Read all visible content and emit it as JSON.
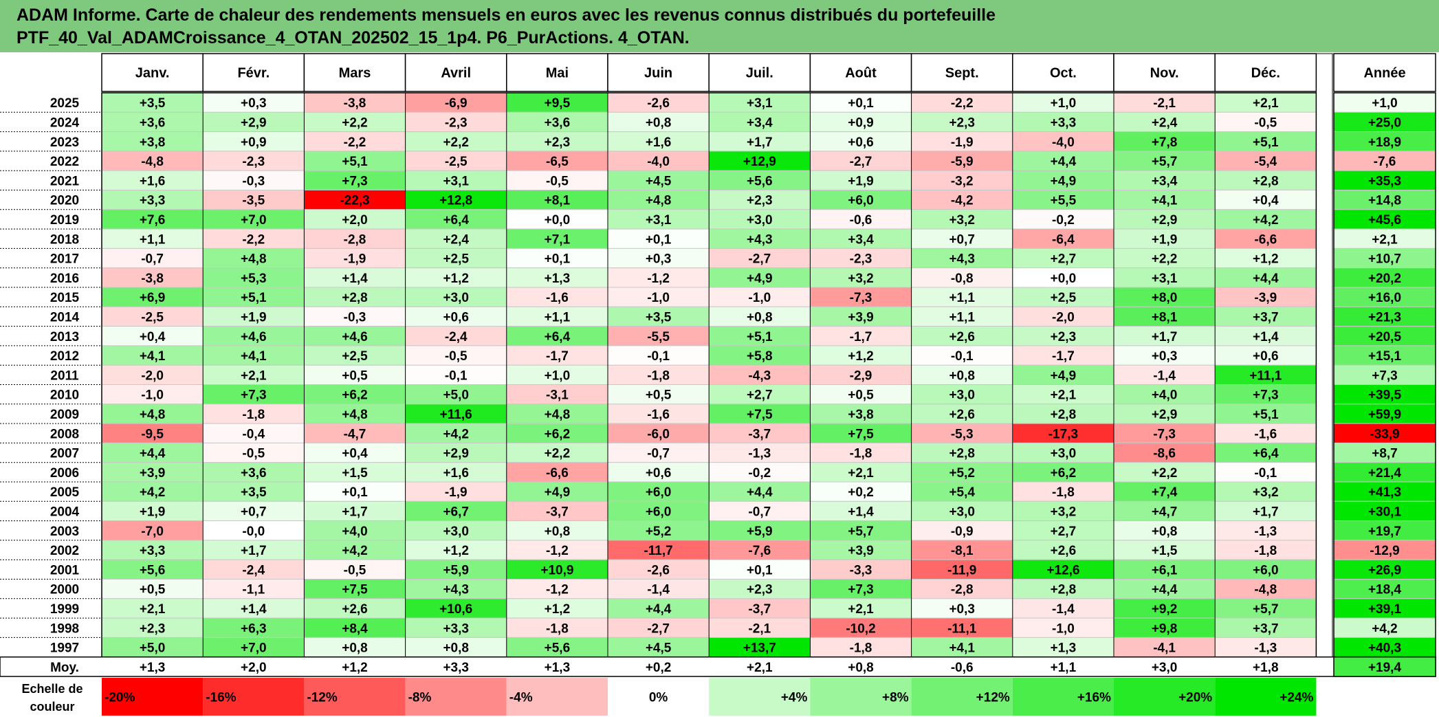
{
  "title": {
    "line1": "ADAM Informe. Carte de chaleur des rendements mensuels en euros avec les revenus connus distribués du portefeuille",
    "line2": "PTF_40_Val_ADAMCroissance_4_OTAN_202502_15_1p4. P6_PurActions. 4_OTAN."
  },
  "chart_data": {
    "type": "heatmap",
    "columns": [
      "Janv.",
      "Févr.",
      "Mars",
      "Avril",
      "Mai",
      "Juin",
      "Juil.",
      "Août",
      "Sept.",
      "Oct.",
      "Nov.",
      "Déc."
    ],
    "year_column": "Année",
    "rows": [
      {
        "year": "2025",
        "values": [
          "+3,5",
          "+0,3",
          "-3,8",
          "-6,9",
          "+9,5",
          "-2,6",
          "+3,1",
          "+0,1",
          "-2,2",
          "+1,0",
          "-2,1",
          "+2,1"
        ],
        "annual": "+1,0"
      },
      {
        "year": "2024",
        "values": [
          "+3,6",
          "+2,9",
          "+2,2",
          "-2,3",
          "+3,6",
          "+0,8",
          "+3,4",
          "+0,9",
          "+2,3",
          "+3,3",
          "+2,4",
          "-0,5"
        ],
        "annual": "+25,0"
      },
      {
        "year": "2023",
        "values": [
          "+3,8",
          "+0,9",
          "-2,2",
          "+2,2",
          "+2,3",
          "+1,6",
          "+1,7",
          "+0,6",
          "-1,9",
          "-4,0",
          "+7,8",
          "+5,1"
        ],
        "annual": "+18,9"
      },
      {
        "year": "2022",
        "values": [
          "-4,8",
          "-2,3",
          "+5,1",
          "-2,5",
          "-6,5",
          "-4,0",
          "+12,9",
          "-2,7",
          "-5,9",
          "+4,4",
          "+5,7",
          "-5,4"
        ],
        "annual": "-7,6"
      },
      {
        "year": "2021",
        "values": [
          "+1,6",
          "-0,3",
          "+7,3",
          "+3,1",
          "-0,5",
          "+4,5",
          "+5,6",
          "+1,9",
          "-3,2",
          "+4,9",
          "+3,4",
          "+2,8"
        ],
        "annual": "+35,3"
      },
      {
        "year": "2020",
        "values": [
          "+3,3",
          "-3,5",
          "-22,3",
          "+12,8",
          "+8,1",
          "+4,8",
          "+2,3",
          "+6,0",
          "-4,2",
          "+5,5",
          "+4,1",
          "+0,4"
        ],
        "annual": "+14,8"
      },
      {
        "year": "2019",
        "values": [
          "+7,6",
          "+7,0",
          "+2,0",
          "+6,4",
          "+0,0",
          "+3,1",
          "+3,0",
          "-0,6",
          "+3,2",
          "-0,2",
          "+2,9",
          "+4,2"
        ],
        "annual": "+45,6"
      },
      {
        "year": "2018",
        "values": [
          "+1,1",
          "-2,2",
          "-2,8",
          "+2,4",
          "+7,1",
          "+0,1",
          "+4,3",
          "+3,4",
          "+0,7",
          "-6,4",
          "+1,9",
          "-6,6"
        ],
        "annual": "+2,1"
      },
      {
        "year": "2017",
        "values": [
          "-0,7",
          "+4,8",
          "-1,9",
          "+2,5",
          "+0,1",
          "+0,3",
          "-2,7",
          "-2,3",
          "+4,3",
          "+2,7",
          "+2,2",
          "+1,2"
        ],
        "annual": "+10,7"
      },
      {
        "year": "2016",
        "values": [
          "-3,8",
          "+5,3",
          "+1,4",
          "+1,2",
          "+1,3",
          "-1,2",
          "+4,9",
          "+3,2",
          "-0,8",
          "+0,0",
          "+3,1",
          "+4,4"
        ],
        "annual": "+20,2"
      },
      {
        "year": "2015",
        "values": [
          "+6,9",
          "+5,1",
          "+2,8",
          "+3,0",
          "-1,6",
          "-1,0",
          "-1,0",
          "-7,3",
          "+1,1",
          "+2,5",
          "+8,0",
          "-3,9"
        ],
        "annual": "+16,0"
      },
      {
        "year": "2014",
        "values": [
          "-2,5",
          "+1,9",
          "-0,3",
          "+0,6",
          "+1,1",
          "+3,5",
          "+0,8",
          "+3,9",
          "+1,1",
          "-2,0",
          "+8,1",
          "+3,7"
        ],
        "annual": "+21,3"
      },
      {
        "year": "2013",
        "values": [
          "+0,4",
          "+4,6",
          "+4,6",
          "-2,4",
          "+6,4",
          "-5,5",
          "+5,1",
          "-1,7",
          "+2,6",
          "+2,3",
          "+1,7",
          "+1,4"
        ],
        "annual": "+20,5"
      },
      {
        "year": "2012",
        "values": [
          "+4,1",
          "+4,1",
          "+2,5",
          "-0,5",
          "-1,7",
          "-0,1",
          "+5,8",
          "+1,2",
          "-0,1",
          "-1,7",
          "+0,3",
          "+0,6"
        ],
        "annual": "+15,1"
      },
      {
        "year": "2011",
        "values": [
          "-2,0",
          "+2,1",
          "+0,5",
          "-0,1",
          "+1,0",
          "-1,8",
          "-4,3",
          "-2,9",
          "+0,8",
          "+4,9",
          "-1,4",
          "+11,1"
        ],
        "annual": "+7,3"
      },
      {
        "year": "2010",
        "values": [
          "-1,0",
          "+7,3",
          "+6,2",
          "+5,0",
          "-3,1",
          "+0,5",
          "+2,7",
          "+0,5",
          "+3,0",
          "+2,1",
          "+4,0",
          "+7,3"
        ],
        "annual": "+39,5"
      },
      {
        "year": "2009",
        "values": [
          "+4,8",
          "-1,8",
          "+4,8",
          "+11,6",
          "+4,8",
          "-1,6",
          "+7,5",
          "+3,8",
          "+2,6",
          "+2,8",
          "+2,9",
          "+5,1"
        ],
        "annual": "+59,9"
      },
      {
        "year": "2008",
        "values": [
          "-9,5",
          "-0,4",
          "-4,7",
          "+4,2",
          "+6,2",
          "-6,0",
          "-3,7",
          "+7,5",
          "-5,3",
          "-17,3",
          "-7,3",
          "-1,6"
        ],
        "annual": "-33,9"
      },
      {
        "year": "2007",
        "values": [
          "+4,4",
          "-0,5",
          "+0,4",
          "+2,9",
          "+2,2",
          "-0,7",
          "-1,3",
          "-1,8",
          "+2,8",
          "+3,0",
          "-8,6",
          "+6,4"
        ],
        "annual": "+8,7"
      },
      {
        "year": "2006",
        "values": [
          "+3,9",
          "+3,6",
          "+1,5",
          "+1,6",
          "-6,6",
          "+0,6",
          "-0,2",
          "+2,1",
          "+5,2",
          "+6,2",
          "+2,2",
          "-0,1"
        ],
        "annual": "+21,4"
      },
      {
        "year": "2005",
        "values": [
          "+4,2",
          "+3,5",
          "+0,1",
          "-1,9",
          "+4,9",
          "+6,0",
          "+4,4",
          "+0,2",
          "+5,4",
          "-1,8",
          "+7,4",
          "+3,2"
        ],
        "annual": "+41,3"
      },
      {
        "year": "2004",
        "values": [
          "+1,9",
          "+0,7",
          "+1,7",
          "+6,7",
          "-3,7",
          "+6,0",
          "-0,7",
          "+1,4",
          "+3,0",
          "+3,2",
          "+4,7",
          "+1,7"
        ],
        "annual": "+30,1"
      },
      {
        "year": "2003",
        "values": [
          "-7,0",
          "-0,0",
          "+4,0",
          "+3,0",
          "+0,8",
          "+5,2",
          "+5,9",
          "+5,7",
          "-0,9",
          "+2,7",
          "+0,8",
          "-1,3"
        ],
        "annual": "+19,7"
      },
      {
        "year": "2002",
        "values": [
          "+3,3",
          "+1,7",
          "+4,2",
          "+1,2",
          "-1,2",
          "-11,7",
          "-7,6",
          "+3,9",
          "-8,1",
          "+2,6",
          "+1,5",
          "-1,8"
        ],
        "annual": "-12,9"
      },
      {
        "year": "2001",
        "values": [
          "+5,6",
          "-2,4",
          "-0,5",
          "+5,9",
          "+10,9",
          "-2,6",
          "+0,1",
          "-3,3",
          "-11,9",
          "+12,6",
          "+6,1",
          "+6,0"
        ],
        "annual": "+26,9"
      },
      {
        "year": "2000",
        "values": [
          "+0,5",
          "-1,1",
          "+7,5",
          "+4,3",
          "-1,2",
          "-1,4",
          "+2,3",
          "+7,3",
          "-2,8",
          "+2,8",
          "+4,4",
          "-4,8"
        ],
        "annual": "+18,4"
      },
      {
        "year": "1999",
        "values": [
          "+2,1",
          "+1,4",
          "+2,6",
          "+10,6",
          "+1,2",
          "+4,4",
          "-3,7",
          "+2,1",
          "+0,3",
          "-1,4",
          "+9,2",
          "+5,7"
        ],
        "annual": "+39,1"
      },
      {
        "year": "1998",
        "values": [
          "+2,3",
          "+6,3",
          "+8,4",
          "+3,3",
          "-1,8",
          "-2,7",
          "-2,1",
          "-10,2",
          "-11,1",
          "-1,0",
          "+9,8",
          "+3,7"
        ],
        "annual": "+4,2"
      },
      {
        "year": "1997",
        "values": [
          "+5,0",
          "+7,0",
          "+0,8",
          "+0,8",
          "+5,6",
          "+4,5",
          "+13,7",
          "-1,8",
          "+4,1",
          "+1,3",
          "-4,1",
          "-1,3"
        ],
        "annual": "+40,3"
      }
    ],
    "average": {
      "label": "Moy.",
      "values": [
        "+1,3",
        "+2,0",
        "+1,2",
        "+3,3",
        "+1,3",
        "+0,2",
        "+2,1",
        "+0,8",
        "-0,6",
        "+1,1",
        "+3,0",
        "+1,8"
      ],
      "annual": "+19,4"
    },
    "scale": {
      "label_line1": "Echelle de",
      "label_line2": "couleur",
      "stops": [
        "-20%",
        "-16%",
        "-12%",
        "-8%",
        "-4%",
        "0%",
        "+4%",
        "+8%",
        "+12%",
        "+16%",
        "+20%",
        "+24%"
      ]
    },
    "colors": {
      "title_bg": "#7fc97f",
      "neg_max": "#ff0000",
      "pos_max": "#00e600",
      "neutral": "#ffffff"
    }
  }
}
